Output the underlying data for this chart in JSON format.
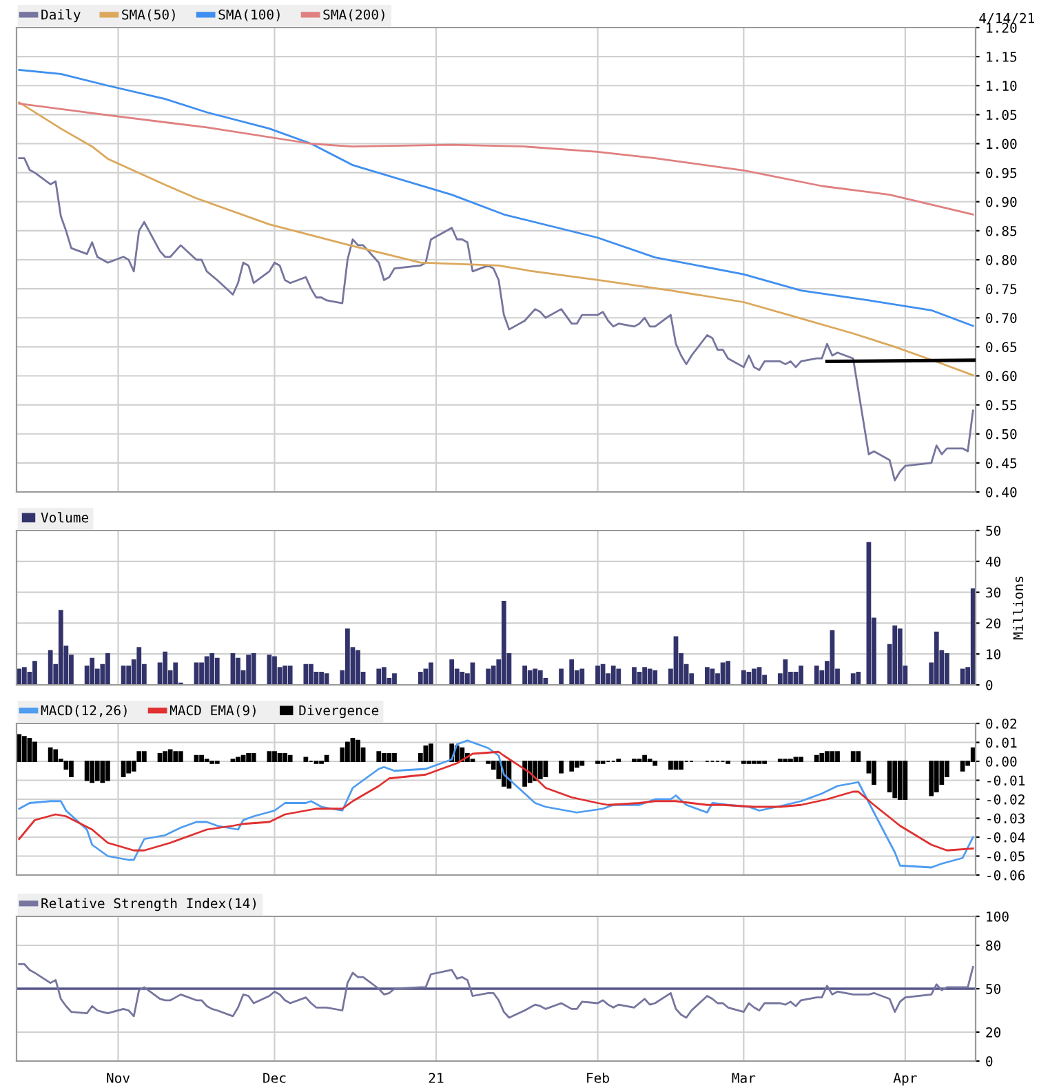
{
  "chart_data": [
    {
      "type": "line",
      "legend": "top left",
      "grid": true,
      "tick_labels": "y",
      "annotations": [
        "4/14/21"
      ],
      "xlim": [
        "2020-10-12T12:00",
        "2021-04-14T12:00"
      ],
      "xticks": [
        {
          "value": "2020-11-01",
          "label": null
        },
        {
          "value": "2020-12-01",
          "label": null
        },
        {
          "value": "2021-01-01",
          "label": null
        },
        {
          "value": "2021-02-01",
          "label": null
        },
        {
          "value": "2021-03-01",
          "label": null
        },
        {
          "value": "2021-04-01",
          "label": null
        }
      ],
      "ylim": [
        0.4,
        1.2
      ],
      "yticks": [
        {
          "value": 0.4,
          "label": "0.40"
        },
        {
          "value": 0.45,
          "label": "0.45"
        },
        {
          "value": 0.5,
          "label": "0.50"
        },
        {
          "value": 0.55,
          "label": "0.55"
        },
        {
          "value": 0.6,
          "label": "0.60"
        },
        {
          "value": 0.65,
          "label": "0.65"
        },
        {
          "value": 0.7,
          "label": "0.70"
        },
        {
          "value": 0.75,
          "label": "0.75"
        },
        {
          "value": 0.8,
          "label": "0.80"
        },
        {
          "value": 0.85,
          "label": "0.85"
        },
        {
          "value": 0.9,
          "label": "0.90"
        },
        {
          "value": 0.95,
          "label": "0.95"
        },
        {
          "value": 1.0,
          "label": "1.00"
        },
        {
          "value": 1.05,
          "label": "1.05"
        },
        {
          "value": 1.1,
          "label": "1.10"
        },
        {
          "value": 1.15,
          "label": "1.15"
        },
        {
          "value": 1.2,
          "label": "1.20"
        }
      ],
      "series": [
        {
          "name": "Daily",
          "color": "#75759f",
          "x": [
            "2020-10-13",
            "2020-10-14",
            "2020-10-15",
            "2020-10-16",
            "2020-10-19",
            "2020-10-20",
            "2020-10-21",
            "2020-10-22",
            "2020-10-23",
            "2020-10-26",
            "2020-10-27",
            "2020-10-28",
            "2020-10-30",
            "2020-11-02",
            "2020-11-03",
            "2020-11-04",
            "2020-11-05",
            "2020-11-06",
            "2020-11-09",
            "2020-11-10",
            "2020-11-11",
            "2020-11-13",
            "2020-11-16",
            "2020-11-17",
            "2020-11-18",
            "2020-11-20",
            "2020-11-23",
            "2020-11-24",
            "2020-11-25",
            "2020-11-26",
            "2020-11-27",
            "2020-11-30",
            "2020-12-01",
            "2020-12-02",
            "2020-12-03",
            "2020-12-04",
            "2020-12-07",
            "2020-12-08",
            "2020-12-09",
            "2020-12-10",
            "2020-12-11",
            "2020-12-14",
            "2020-12-15",
            "2020-12-16",
            "2020-12-17",
            "2020-12-18",
            "2020-12-21",
            "2020-12-22",
            "2020-12-23",
            "2020-12-24",
            "2020-12-29",
            "2020-12-30",
            "2020-12-31",
            "2021-01-04",
            "2021-01-05",
            "2021-01-06",
            "2021-01-07",
            "2021-01-08",
            "2021-01-11",
            "2021-01-12",
            "2021-01-13",
            "2021-01-14",
            "2021-01-15",
            "2021-01-18",
            "2021-01-19",
            "2021-01-20",
            "2021-01-21",
            "2021-01-22",
            "2021-01-25",
            "2021-01-27",
            "2021-01-28",
            "2021-01-29",
            "2021-02-01",
            "2021-02-02",
            "2021-02-03",
            "2021-02-04",
            "2021-02-05",
            "2021-02-08",
            "2021-02-09",
            "2021-02-10",
            "2021-02-11",
            "2021-02-12",
            "2021-02-15",
            "2021-02-16",
            "2021-02-17",
            "2021-02-18",
            "2021-02-19",
            "2021-02-22",
            "2021-02-23",
            "2021-02-24",
            "2021-02-25",
            "2021-02-26",
            "2021-03-01",
            "2021-03-02",
            "2021-03-03",
            "2021-03-04",
            "2021-03-05",
            "2021-03-08",
            "2021-03-09",
            "2021-03-10",
            "2021-03-11",
            "2021-03-12",
            "2021-03-15",
            "2021-03-16",
            "2021-03-17",
            "2021-03-18",
            "2021-03-19",
            "2021-03-22",
            "2021-03-25",
            "2021-03-26",
            "2021-03-29",
            "2021-03-30",
            "2021-03-31",
            "2021-04-01",
            "2021-04-06",
            "2021-04-07",
            "2021-04-08",
            "2021-04-09",
            "2021-04-12",
            "2021-04-13",
            "2021-04-14"
          ],
          "values": [
            0.975,
            0.975,
            0.955,
            0.95,
            0.93,
            0.935,
            0.875,
            0.85,
            0.82,
            0.81,
            0.83,
            0.805,
            0.795,
            0.805,
            0.8,
            0.78,
            0.85,
            0.865,
            0.815,
            0.805,
            0.805,
            0.825,
            0.8,
            0.8,
            0.78,
            0.765,
            0.74,
            0.76,
            0.795,
            0.79,
            0.76,
            0.78,
            0.795,
            0.79,
            0.765,
            0.76,
            0.77,
            0.75,
            0.735,
            0.735,
            0.73,
            0.725,
            0.8,
            0.835,
            0.825,
            0.825,
            0.795,
            0.765,
            0.77,
            0.785,
            0.79,
            0.795,
            0.835,
            0.855,
            0.835,
            0.835,
            0.83,
            0.78,
            0.79,
            0.785,
            0.765,
            0.705,
            0.68,
            0.695,
            0.705,
            0.715,
            0.71,
            0.7,
            0.715,
            0.69,
            0.69,
            0.705,
            0.705,
            0.71,
            0.695,
            0.685,
            0.69,
            0.685,
            0.69,
            0.7,
            0.685,
            0.685,
            0.705,
            0.655,
            0.635,
            0.62,
            0.635,
            0.67,
            0.665,
            0.645,
            0.645,
            0.63,
            0.615,
            0.635,
            0.615,
            0.61,
            0.625,
            0.625,
            0.62,
            0.625,
            0.615,
            0.625,
            0.63,
            0.63,
            0.655,
            0.635,
            0.64,
            0.63,
            0.465,
            0.47,
            0.455,
            0.42,
            0.435,
            0.445,
            0.45,
            0.48,
            0.465,
            0.475,
            0.475,
            0.47,
            0.54
          ]
        },
        {
          "name": "SMA(50)",
          "color": "#dba85c",
          "x": [
            "2020-10-13",
            "2020-10-21",
            "2020-10-27",
            "2020-10-30",
            "2020-11-10",
            "2020-11-16",
            "2020-11-30",
            "2020-12-15",
            "2020-12-29",
            "2021-01-13",
            "2021-01-19",
            "2021-02-02",
            "2021-02-15",
            "2021-03-01",
            "2021-03-10",
            "2021-03-22",
            "2021-03-30",
            "2021-04-08",
            "2021-04-14"
          ],
          "values": [
            1.071,
            1.026,
            0.995,
            0.974,
            0.929,
            0.906,
            0.861,
            0.826,
            0.795,
            0.79,
            0.781,
            0.764,
            0.747,
            0.727,
            0.704,
            0.673,
            0.65,
            0.621,
            0.601
          ]
        },
        {
          "name": "SMA(100)",
          "color": "#3f8ff0",
          "x": [
            "2020-10-13",
            "2020-10-21",
            "2020-10-30",
            "2020-11-10",
            "2020-11-18",
            "2020-11-30",
            "2020-12-08",
            "2020-12-16",
            "2021-01-04",
            "2021-01-14",
            "2021-02-01",
            "2021-02-12",
            "2021-03-01",
            "2021-03-12",
            "2021-03-25",
            "2021-04-06",
            "2021-04-14"
          ],
          "values": [
            1.127,
            1.12,
            1.1,
            1.077,
            1.054,
            1.026,
            1.0,
            0.963,
            0.912,
            0.878,
            0.838,
            0.804,
            0.775,
            0.747,
            0.73,
            0.713,
            0.686
          ]
        },
        {
          "name": "SMA(200)",
          "color": "#e08080",
          "x": [
            "2020-10-13",
            "2020-10-30",
            "2020-11-18",
            "2020-12-08",
            "2020-12-16",
            "2021-01-04",
            "2021-01-18",
            "2021-02-01",
            "2021-02-12",
            "2021-03-01",
            "2021-03-16",
            "2021-03-29",
            "2021-04-14"
          ],
          "values": [
            1.069,
            1.049,
            1.028,
            1.0,
            0.995,
            0.998,
            0.995,
            0.986,
            0.975,
            0.954,
            0.927,
            0.912,
            0.878
          ]
        },
        {
          "color": "#000000",
          "x": [
            "2021-03-17",
            "2021-04-14T12:00"
          ],
          "values": [
            0.625,
            0.627
          ]
        }
      ]
    },
    {
      "type": "bar",
      "legend": "top left",
      "grid": true,
      "tick_labels": "y",
      "ylabel": "Millions",
      "xlim": [
        "2020-10-12T12:00",
        "2021-04-14T12:00"
      ],
      "xticks": [
        {
          "value": "2020-11-01",
          "label": null
        },
        {
          "value": "2020-12-01",
          "label": null
        },
        {
          "value": "2021-01-01",
          "label": null
        },
        {
          "value": "2021-02-01",
          "label": null
        },
        {
          "value": "2021-03-01",
          "label": null
        },
        {
          "value": "2021-04-01",
          "label": null
        }
      ],
      "ylim": [
        0,
        50
      ],
      "yticks": [
        0,
        10,
        20,
        30,
        40,
        50
      ],
      "x": [
        "2020-10-13",
        "2020-10-14",
        "2020-10-15",
        "2020-10-16",
        "2020-10-19",
        "2020-10-20",
        "2020-10-21",
        "2020-10-22",
        "2020-10-23",
        "2020-10-26",
        "2020-10-27",
        "2020-10-28",
        "2020-10-29",
        "2020-10-30",
        "2020-11-02",
        "2020-11-03",
        "2020-11-04",
        "2020-11-05",
        "2020-11-06",
        "2020-11-09",
        "2020-11-10",
        "2020-11-11",
        "2020-11-12",
        "2020-11-13",
        "2020-11-16",
        "2020-11-17",
        "2020-11-18",
        "2020-11-19",
        "2020-11-20",
        "2020-11-23",
        "2020-11-24",
        "2020-11-25",
        "2020-11-26",
        "2020-11-27",
        "2020-11-30",
        "2020-12-01",
        "2020-12-02",
        "2020-12-03",
        "2020-12-04",
        "2020-12-07",
        "2020-12-08",
        "2020-12-09",
        "2020-12-10",
        "2020-12-11",
        "2020-12-14",
        "2020-12-15",
        "2020-12-16",
        "2020-12-17",
        "2020-12-18",
        "2020-12-21",
        "2020-12-22",
        "2020-12-23",
        "2020-12-24",
        "2020-12-29",
        "2020-12-30",
        "2020-12-31",
        "2021-01-04",
        "2021-01-05",
        "2021-01-06",
        "2021-01-07",
        "2021-01-08",
        "2021-01-11",
        "2021-01-12",
        "2021-01-13",
        "2021-01-14",
        "2021-01-15",
        "2021-01-18",
        "2021-01-19",
        "2021-01-20",
        "2021-01-21",
        "2021-01-22",
        "2021-01-25",
        "2021-01-27",
        "2021-01-28",
        "2021-01-29",
        "2021-02-01",
        "2021-02-02",
        "2021-02-03",
        "2021-02-04",
        "2021-02-05",
        "2021-02-08",
        "2021-02-09",
        "2021-02-10",
        "2021-02-11",
        "2021-02-12",
        "2021-02-15",
        "2021-02-16",
        "2021-02-17",
        "2021-02-18",
        "2021-02-19",
        "2021-02-22",
        "2021-02-23",
        "2021-02-24",
        "2021-02-25",
        "2021-02-26",
        "2021-03-01",
        "2021-03-02",
        "2021-03-03",
        "2021-03-04",
        "2021-03-05",
        "2021-03-08",
        "2021-03-09",
        "2021-03-10",
        "2021-03-11",
        "2021-03-12",
        "2021-03-15",
        "2021-03-16",
        "2021-03-17",
        "2021-03-18",
        "2021-03-19",
        "2021-03-22",
        "2021-03-23",
        "2021-03-24",
        "2021-03-25",
        "2021-03-26",
        "2021-03-29",
        "2021-03-30",
        "2021-03-31",
        "2021-04-01",
        "2021-04-06",
        "2021-04-07",
        "2021-04-08",
        "2021-04-09",
        "2021-04-12",
        "2021-04-13",
        "2021-04-14"
      ],
      "series": [
        {
          "name": "Volume",
          "color": "#33336b",
          "values": [
            5,
            5.5,
            4,
            7.5,
            11,
            6.5,
            24,
            12.5,
            9.5,
            6,
            8.5,
            5,
            6.5,
            10,
            6,
            6,
            8,
            12,
            6.5,
            7,
            10.5,
            4.5,
            7,
            0.5,
            7,
            7,
            9,
            10,
            8.5,
            10,
            8.5,
            4.5,
            9.5,
            10,
            9.5,
            9,
            5.5,
            6,
            6,
            6.5,
            6.5,
            4,
            4,
            3.5,
            4.5,
            18,
            12,
            11,
            4,
            5,
            5.5,
            2,
            3.5,
            4,
            5,
            7,
            8,
            5,
            4,
            3.5,
            7,
            5,
            6,
            8,
            27,
            10,
            6,
            4.5,
            5,
            4.5,
            2,
            5,
            8,
            4.5,
            5,
            6,
            6.5,
            3.5,
            6,
            5,
            5.5,
            4,
            5.5,
            5,
            4.5,
            5,
            15.5,
            10,
            6.5,
            3.5,
            5.5,
            5,
            3.5,
            7,
            7.5,
            4.5,
            4,
            5,
            5.5,
            3,
            3.5,
            8,
            4,
            4,
            6,
            6,
            4.5,
            7.5,
            17.5,
            5,
            3.5,
            4,
            null,
            46,
            21.5,
            13,
            19,
            18,
            6,
            7,
            17,
            11,
            10,
            5,
            5.5,
            31
          ]
        }
      ]
    },
    {
      "type": "line",
      "legend": "top left",
      "grid": true,
      "tick_labels": "y",
      "xlim": [
        "2020-10-12T12:00",
        "2021-04-14T12:00"
      ],
      "xticks": [
        {
          "value": "2020-11-01",
          "label": null
        },
        {
          "value": "2020-12-01",
          "label": null
        },
        {
          "value": "2021-01-01",
          "label": null
        },
        {
          "value": "2021-02-01",
          "label": null
        },
        {
          "value": "2021-03-01",
          "label": null
        },
        {
          "value": "2021-04-01",
          "label": null
        }
      ],
      "ylim": [
        -0.06,
        0.02
      ],
      "yticks": [
        {
          "value": -0.06,
          "label": "-0.06"
        },
        {
          "value": -0.05,
          "label": "-0.05"
        },
        {
          "value": -0.04,
          "label": "-0.04"
        },
        {
          "value": -0.03,
          "label": "-0.03"
        },
        {
          "value": -0.02,
          "label": "-0.02"
        },
        {
          "value": -0.01,
          "label": "-0.01"
        },
        {
          "value": 0.0,
          "label": "0.00"
        },
        {
          "value": 0.01,
          "label": "0.01"
        },
        {
          "value": 0.02,
          "label": "0.02"
        }
      ],
      "x": [
        "2020-10-13",
        "2020-10-14",
        "2020-10-15",
        "2020-10-16",
        "2020-10-19",
        "2020-10-20",
        "2020-10-21",
        "2020-10-22",
        "2020-10-23",
        "2020-10-26",
        "2020-10-27",
        "2020-10-28",
        "2020-10-29",
        "2020-10-30",
        "2020-11-02",
        "2020-11-03",
        "2020-11-04",
        "2020-11-05",
        "2020-11-06",
        "2020-11-09",
        "2020-11-10",
        "2020-11-11",
        "2020-11-12",
        "2020-11-13",
        "2020-11-16",
        "2020-11-17",
        "2020-11-18",
        "2020-11-19",
        "2020-11-20",
        "2020-11-23",
        "2020-11-24",
        "2020-11-25",
        "2020-11-26",
        "2020-11-27",
        "2020-11-30",
        "2020-12-01",
        "2020-12-02",
        "2020-12-03",
        "2020-12-04",
        "2020-12-07",
        "2020-12-08",
        "2020-12-09",
        "2020-12-10",
        "2020-12-11",
        "2020-12-14",
        "2020-12-15",
        "2020-12-16",
        "2020-12-17",
        "2020-12-18",
        "2020-12-21",
        "2020-12-22",
        "2020-12-23",
        "2020-12-24",
        "2020-12-29",
        "2020-12-30",
        "2020-12-31",
        "2021-01-04",
        "2021-01-05",
        "2021-01-06",
        "2021-01-07",
        "2021-01-08",
        "2021-01-11",
        "2021-01-12",
        "2021-01-13",
        "2021-01-14",
        "2021-01-15",
        "2021-01-18",
        "2021-01-19",
        "2021-01-20",
        "2021-01-21",
        "2021-01-22",
        "2021-01-25",
        "2021-01-27",
        "2021-01-28",
        "2021-01-29",
        "2021-02-01",
        "2021-02-02",
        "2021-02-03",
        "2021-02-04",
        "2021-02-05",
        "2021-02-08",
        "2021-02-09",
        "2021-02-10",
        "2021-02-11",
        "2021-02-12",
        "2021-02-15",
        "2021-02-16",
        "2021-02-17",
        "2021-02-18",
        "2021-02-19",
        "2021-02-22",
        "2021-02-23",
        "2021-02-24",
        "2021-02-25",
        "2021-02-26",
        "2021-03-01",
        "2021-03-02",
        "2021-03-03",
        "2021-03-04",
        "2021-03-05",
        "2021-03-08",
        "2021-03-09",
        "2021-03-10",
        "2021-03-11",
        "2021-03-12",
        "2021-03-15",
        "2021-03-16",
        "2021-03-17",
        "2021-03-18",
        "2021-03-19",
        "2021-03-22",
        "2021-03-23",
        "2021-03-24",
        "2021-03-25",
        "2021-03-26",
        "2021-03-29",
        "2021-03-30",
        "2021-03-31",
        "2021-04-01",
        "2021-04-06",
        "2021-04-07",
        "2021-04-08",
        "2021-04-09",
        "2021-04-12",
        "2021-04-13",
        "2021-04-14"
      ],
      "series": [
        {
          "name": "MACD(12,26)",
          "color": "#4f9cf0",
          "x": [
            "2020-10-13",
            "2020-10-15",
            "2020-10-19",
            "2020-10-21",
            "2020-10-22",
            "2020-10-26",
            "2020-10-27",
            "2020-10-30",
            "2020-11-03",
            "2020-11-04",
            "2020-11-06",
            "2020-11-10",
            "2020-11-13",
            "2020-11-16",
            "2020-11-18",
            "2020-11-20",
            "2020-11-24",
            "2020-11-25",
            "2020-11-27",
            "2020-12-01",
            "2020-12-03",
            "2020-12-07",
            "2020-12-08",
            "2020-12-10",
            "2020-12-14",
            "2020-12-16",
            "2020-12-21",
            "2020-12-22",
            "2020-12-24",
            "2020-12-30",
            "2021-01-04",
            "2021-01-05",
            "2021-01-07",
            "2021-01-11",
            "2021-01-13",
            "2021-01-14",
            "2021-01-18",
            "2021-01-20",
            "2021-01-22",
            "2021-01-28",
            "2021-02-02",
            "2021-02-04",
            "2021-02-09",
            "2021-02-12",
            "2021-02-15",
            "2021-02-16",
            "2021-02-18",
            "2021-02-22",
            "2021-02-23",
            "2021-02-26",
            "2021-03-02",
            "2021-03-04",
            "2021-03-09",
            "2021-03-12",
            "2021-03-16",
            "2021-03-19",
            "2021-03-23",
            "2021-03-26",
            "2021-03-30",
            "2021-03-31",
            "2021-04-06",
            "2021-04-08",
            "2021-04-12",
            "2021-04-14"
          ],
          "values": [
            -0.025,
            -0.022,
            -0.021,
            -0.021,
            -0.026,
            -0.036,
            -0.044,
            -0.05,
            -0.052,
            -0.052,
            -0.041,
            -0.039,
            -0.035,
            -0.032,
            -0.032,
            -0.034,
            -0.036,
            -0.031,
            -0.029,
            -0.026,
            -0.022,
            -0.022,
            -0.021,
            -0.024,
            -0.026,
            -0.014,
            -0.004,
            -0.003,
            -0.005,
            -0.004,
            0.001,
            0.009,
            0.011,
            0.007,
            0.003,
            -0.007,
            -0.017,
            -0.022,
            -0.024,
            -0.027,
            -0.025,
            -0.023,
            -0.023,
            -0.02,
            -0.02,
            -0.018,
            -0.023,
            -0.027,
            -0.022,
            -0.023,
            -0.024,
            -0.026,
            -0.023,
            -0.021,
            -0.017,
            -0.013,
            -0.011,
            -0.027,
            -0.048,
            -0.055,
            -0.056,
            -0.054,
            -0.051,
            -0.04
          ]
        },
        {
          "name": "MACD EMA(9)",
          "color": "#e03030",
          "x": [
            "2020-10-13",
            "2020-10-16",
            "2020-10-20",
            "2020-10-22",
            "2020-10-27",
            "2020-10-30",
            "2020-11-04",
            "2020-11-06",
            "2020-11-11",
            "2020-11-16",
            "2020-11-18",
            "2020-11-23",
            "2020-11-25",
            "2020-11-30",
            "2020-12-03",
            "2020-12-09",
            "2020-12-14",
            "2020-12-16",
            "2020-12-21",
            "2020-12-23",
            "2020-12-30",
            "2021-01-05",
            "2021-01-08",
            "2021-01-13",
            "2021-01-14",
            "2021-01-19",
            "2021-01-22",
            "2021-01-27",
            "2021-02-01",
            "2021-02-03",
            "2021-02-09",
            "2021-02-12",
            "2021-02-16",
            "2021-02-22",
            "2021-02-25",
            "2021-03-03",
            "2021-03-08",
            "2021-03-12",
            "2021-03-17",
            "2021-03-22",
            "2021-03-23",
            "2021-03-26",
            "2021-03-31",
            "2021-04-06",
            "2021-04-09",
            "2021-04-14"
          ],
          "values": [
            -0.041,
            -0.031,
            -0.028,
            -0.029,
            -0.036,
            -0.043,
            -0.047,
            -0.047,
            -0.043,
            -0.038,
            -0.036,
            -0.034,
            -0.033,
            -0.032,
            -0.028,
            -0.025,
            -0.025,
            -0.021,
            -0.013,
            -0.009,
            -0.007,
            -0.001,
            0.004,
            0.005,
            0.003,
            -0.006,
            -0.014,
            -0.019,
            -0.022,
            -0.023,
            -0.022,
            -0.021,
            -0.021,
            -0.023,
            -0.023,
            -0.024,
            -0.024,
            -0.023,
            -0.02,
            -0.016,
            -0.016,
            -0.023,
            -0.034,
            -0.044,
            -0.047,
            -0.046
          ]
        },
        {
          "name": "Divergence",
          "type": "bar",
          "color": "#000000",
          "values": [
            0.014,
            0.013,
            0.012,
            0.01,
            0.007,
            0.006,
            0.001,
            -0.004,
            -0.008,
            -0.01,
            -0.011,
            -0.01,
            -0.011,
            -0.01,
            -0.008,
            -0.006,
            -0.005,
            0.005,
            0.005,
            0.004,
            0.005,
            0.006,
            0.005,
            0.005,
            0.003,
            0.003,
            0.001,
            -0.001,
            -0.001,
            0.001,
            0.002,
            0.003,
            0.004,
            0.004,
            0.005,
            0.005,
            0.004,
            0.004,
            0.003,
            0.002,
            0,
            -0.001,
            -0.001,
            0.003,
            0.007,
            0.01,
            0.012,
            0.011,
            0.007,
            0.005,
            0.004,
            0.004,
            0.004,
            0.004,
            0.008,
            0.009,
            0.009,
            0.008,
            0.007,
            0.004,
            0.001,
            -0.001,
            -0.004,
            -0.009,
            -0.013,
            -0.014,
            -0.013,
            -0.011,
            -0.01,
            -0.009,
            -0.008,
            -0.006,
            -0.005,
            -0.003,
            -0.002,
            -0.001,
            -0.001,
            0,
            0,
            0.001,
            0.001,
            0.001,
            0.003,
            0.001,
            -0.002,
            -0.004,
            -0.004,
            -0.004,
            0,
            0,
            0,
            0,
            0,
            0,
            -0.001,
            -0.001,
            -0.001,
            -0.001,
            -0.001,
            -0.001,
            0.001,
            0.001,
            0.001,
            0.002,
            0.002,
            0.003,
            0.004,
            0.005,
            0.005,
            0.005,
            0.005,
            0.005,
            null,
            -0.006,
            -0.012,
            -0.016,
            -0.019,
            -0.02,
            -0.02,
            -0.018,
            -0.016,
            -0.012,
            -0.008,
            -0.005,
            -0.002,
            0.007
          ]
        }
      ]
    },
    {
      "type": "line",
      "legend": "top left",
      "grid": true,
      "xlim": [
        "2020-10-12T12:00",
        "2021-04-14T12:00"
      ],
      "xticks": [
        {
          "value": "2020-11-01",
          "label": "Nov"
        },
        {
          "value": "2020-12-01",
          "label": "Dec"
        },
        {
          "value": "2021-01-01",
          "label": "21"
        },
        {
          "value": "2021-02-01",
          "label": "Feb"
        },
        {
          "value": "2021-03-01",
          "label": "Mar"
        },
        {
          "value": "2021-04-01",
          "label": "Apr"
        }
      ],
      "ylim": [
        0,
        100
      ],
      "yticks": [
        0,
        20,
        50,
        80,
        100
      ],
      "ref_lines": [
        {
          "axis": "y",
          "value": 50,
          "color": "#55558a"
        }
      ],
      "series": [
        {
          "name": "Relative Strength Index(14)",
          "color": "#75759f",
          "x": [
            "2020-10-13",
            "2020-10-14",
            "2020-10-15",
            "2020-10-16",
            "2020-10-19",
            "2020-10-20",
            "2020-10-21",
            "2020-10-22",
            "2020-10-23",
            "2020-10-26",
            "2020-10-27",
            "2020-10-28",
            "2020-10-29",
            "2020-10-30",
            "2020-11-02",
            "2020-11-03",
            "2020-11-04",
            "2020-11-05",
            "2020-11-06",
            "2020-11-09",
            "2020-11-10",
            "2020-11-11",
            "2020-11-12",
            "2020-11-13",
            "2020-11-16",
            "2020-11-17",
            "2020-11-18",
            "2020-11-19",
            "2020-11-20",
            "2020-11-23",
            "2020-11-24",
            "2020-11-25",
            "2020-11-26",
            "2020-11-27",
            "2020-11-30",
            "2020-12-01",
            "2020-12-02",
            "2020-12-03",
            "2020-12-04",
            "2020-12-07",
            "2020-12-08",
            "2020-12-09",
            "2020-12-10",
            "2020-12-11",
            "2020-12-14",
            "2020-12-15",
            "2020-12-16",
            "2020-12-17",
            "2020-12-18",
            "2020-12-21",
            "2020-12-22",
            "2020-12-23",
            "2020-12-24",
            "2020-12-29",
            "2020-12-30",
            "2020-12-31",
            "2021-01-04",
            "2021-01-05",
            "2021-01-06",
            "2021-01-07",
            "2021-01-08",
            "2021-01-11",
            "2021-01-12",
            "2021-01-13",
            "2021-01-14",
            "2021-01-15",
            "2021-01-18",
            "2021-01-19",
            "2021-01-20",
            "2021-01-21",
            "2021-01-22",
            "2021-01-25",
            "2021-01-27",
            "2021-01-28",
            "2021-01-29",
            "2021-02-01",
            "2021-02-02",
            "2021-02-03",
            "2021-02-04",
            "2021-02-05",
            "2021-02-08",
            "2021-02-09",
            "2021-02-10",
            "2021-02-11",
            "2021-02-12",
            "2021-02-15",
            "2021-02-16",
            "2021-02-17",
            "2021-02-18",
            "2021-02-19",
            "2021-02-22",
            "2021-02-23",
            "2021-02-24",
            "2021-02-25",
            "2021-02-26",
            "2021-03-01",
            "2021-03-02",
            "2021-03-03",
            "2021-03-04",
            "2021-03-05",
            "2021-03-08",
            "2021-03-09",
            "2021-03-10",
            "2021-03-11",
            "2021-03-12",
            "2021-03-15",
            "2021-03-16",
            "2021-03-17",
            "2021-03-18",
            "2021-03-19",
            "2021-03-22",
            "2021-03-23",
            "2021-03-25",
            "2021-03-26",
            "2021-03-29",
            "2021-03-30",
            "2021-03-31",
            "2021-04-01",
            "2021-04-06",
            "2021-04-07",
            "2021-04-08",
            "2021-04-09",
            "2021-04-12",
            "2021-04-13",
            "2021-04-14"
          ],
          "values": [
            67,
            67,
            63,
            61,
            54,
            56,
            43,
            38,
            34,
            33,
            38,
            35,
            34,
            33,
            36,
            35,
            31,
            49,
            51,
            43,
            42,
            42,
            44,
            46,
            42,
            42,
            38,
            36,
            35,
            31,
            37,
            46,
            45,
            40,
            45,
            48,
            46,
            42,
            40,
            44,
            40,
            37,
            37,
            37,
            35,
            54,
            61,
            58,
            58,
            50,
            46,
            47,
            50,
            51,
            51,
            60,
            63,
            57,
            58,
            56,
            45,
            47,
            47,
            42,
            34,
            30,
            35,
            37,
            39,
            38,
            36,
            40,
            36,
            36,
            41,
            40,
            42,
            39,
            37,
            39,
            37,
            40,
            43,
            39,
            40,
            47,
            36,
            32,
            30,
            35,
            45,
            43,
            40,
            40,
            37,
            34,
            40,
            37,
            35,
            40,
            40,
            39,
            41,
            38,
            42,
            44,
            44,
            52,
            46,
            48,
            46,
            46,
            46,
            47,
            43,
            34,
            41,
            44,
            46,
            53,
            49,
            51,
            51,
            51,
            65
          ]
        }
      ]
    }
  ]
}
